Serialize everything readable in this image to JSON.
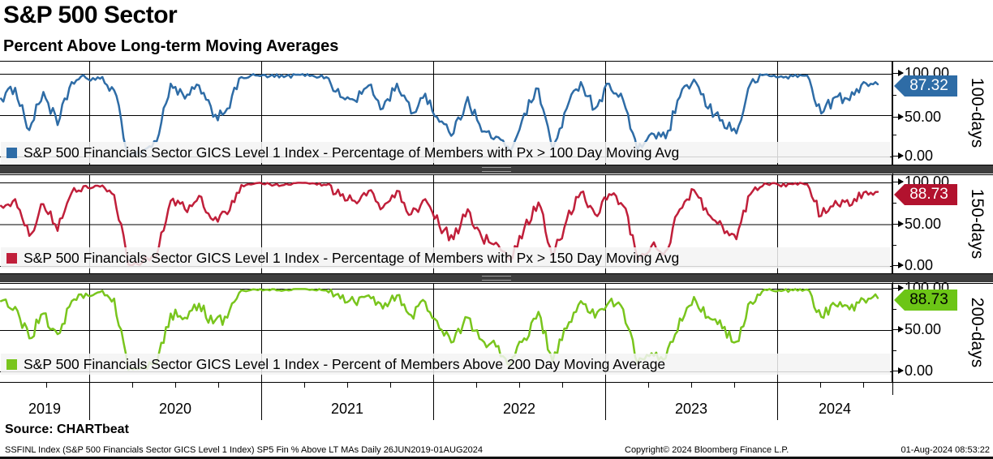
{
  "header": {
    "title": "S&P 500 Sector",
    "subtitle": "Percent Above Long-term Moving Averages"
  },
  "chart_data": {
    "type": "line",
    "x_unit": "decimal_year",
    "x_range": [
      2019.487,
      2024.585
    ],
    "ylim": [
      0,
      100
    ],
    "grid": true,
    "x_tick_labels": [
      "2019",
      "2020",
      "2021",
      "2022",
      "2023",
      "2024"
    ],
    "y_tick_labels": [
      "100.00",
      "50.00",
      "0.00"
    ],
    "series": [
      {
        "name": "S&P 500 Financials Sector GICS Level 1 Index - Percentage of Members with Px > 100 Day Moving Avg",
        "panel_label": "100-days",
        "last_value": 87.32,
        "last_label": "87.32",
        "color": "#2e6ca6",
        "badge_color": "#2e6ca6",
        "badge_text_color": "#ffffff",
        "values": [
          70,
          83,
          32,
          78,
          38,
          90,
          95,
          94,
          80,
          2,
          6,
          18,
          88,
          70,
          86,
          48,
          58,
          96,
          98,
          97,
          96,
          99,
          98,
          96,
          72,
          68,
          86,
          58,
          88,
          52,
          76,
          42,
          28,
          72,
          30,
          24,
          6,
          52,
          82,
          8,
          58,
          90,
          58,
          88,
          68,
          7,
          28,
          22,
          72,
          93,
          58,
          44,
          28,
          88,
          99,
          96,
          97,
          98,
          52,
          72,
          68,
          90,
          87.32
        ]
      },
      {
        "name": "S&P 500 Financials Sector GICS Level 1 Index - Percentage of Members with Px > 150 Day Moving Avg",
        "panel_label": "150-days",
        "last_value": 88.73,
        "last_label": "88.73",
        "color": "#c01f3a",
        "badge_color": "#b2122e",
        "badge_text_color": "#ffffff",
        "values": [
          72,
          80,
          36,
          74,
          42,
          88,
          96,
          95,
          85,
          2,
          5,
          12,
          78,
          68,
          84,
          55,
          62,
          97,
          99,
          98,
          97,
          100,
          99,
          97,
          84,
          78,
          90,
          70,
          90,
          62,
          80,
          48,
          32,
          68,
          34,
          28,
          7,
          45,
          76,
          10,
          55,
          88,
          62,
          86,
          72,
          9,
          24,
          18,
          68,
          91,
          62,
          48,
          32,
          86,
          99,
          97,
          98,
          98,
          60,
          78,
          72,
          88,
          88.73
        ]
      },
      {
        "name": "S&P 500 Financials Sector GICS Level 1 Index - Percent of Members Above 200 Day Moving Average",
        "panel_label": "200-days",
        "last_value": 88.73,
        "last_label": "88.73",
        "color": "#79c51d",
        "badge_color": "#6cc516",
        "badge_text_color": "#000000",
        "values": [
          85,
          78,
          40,
          70,
          45,
          85,
          94,
          96,
          88,
          2,
          4,
          10,
          70,
          65,
          82,
          58,
          65,
          98,
          99,
          98,
          98,
          100,
          99,
          98,
          88,
          84,
          92,
          76,
          92,
          68,
          84,
          52,
          36,
          65,
          38,
          30,
          8,
          40,
          72,
          12,
          52,
          85,
          65,
          84,
          75,
          10,
          22,
          16,
          64,
          90,
          66,
          52,
          36,
          84,
          99,
          98,
          98,
          99,
          66,
          80,
          75,
          87,
          88.73
        ]
      }
    ]
  },
  "footer": {
    "source": "Source:  CHARTbeat",
    "index_info": "SSFINL Index (S&P 500 Financials Sector GICS Level 1 Index) SP5 Fin % Above LT MAs  Daily 26JUN2019-01AUG2024",
    "copyright": "Copyright© 2024 Bloomberg Finance L.P.",
    "datetime": "01-Aug-2024 08:53:22"
  }
}
